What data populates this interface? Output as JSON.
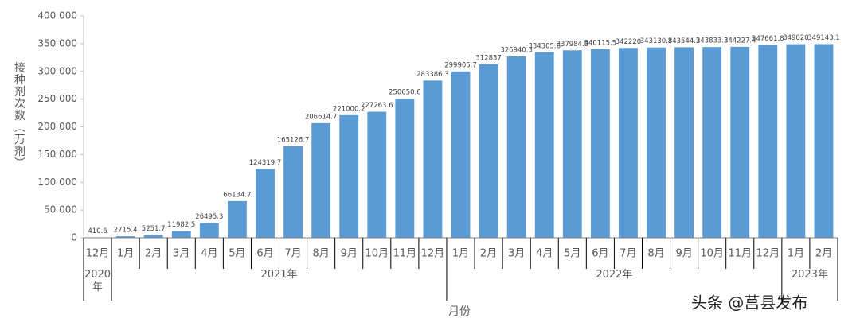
{
  "chart_data": {
    "type": "bar",
    "y_label": "接种剂次数（万剂）",
    "x_label": "月份",
    "watermark": "头条 @莒县发布",
    "groups": [
      {
        "label": "2020年",
        "categories": [
          "12月"
        ]
      },
      {
        "label": "2021年",
        "categories": [
          "1月",
          "2月",
          "3月",
          "4月",
          "5月",
          "6月",
          "7月",
          "8月",
          "9月",
          "10月",
          "11月",
          "12月"
        ]
      },
      {
        "label": "2022年",
        "categories": [
          "1月",
          "2月",
          "3月",
          "4月",
          "5月",
          "6月",
          "7月",
          "8月",
          "9月",
          "10月",
          "11月",
          "12月"
        ]
      },
      {
        "label": "2023年",
        "categories": [
          "1月",
          "2月"
        ]
      }
    ],
    "values": [
      410.6,
      2715.4,
      5251.7,
      11982.5,
      26495.3,
      66134.7,
      124319.7,
      165126.7,
      206614.7,
      221000.2,
      227263.6,
      250650.6,
      283386.3,
      299905.7,
      312837,
      326940.3,
      334305.6,
      337984.8,
      340115.5,
      342220,
      343130.8,
      343544.3,
      343833.3,
      344227.4,
      347661.8,
      349020,
      349143.1
    ],
    "color": "#5b9bd5",
    "ylim": [
      0,
      400000
    ],
    "yticks": [
      0,
      {
        "value": 50000,
        "label": "50 000"
      },
      {
        "value": 100000,
        "label": "100 000"
      },
      {
        "value": 150000,
        "label": "150 000"
      },
      {
        "value": 200000,
        "label": "200 000"
      },
      {
        "value": 250000,
        "label": "250 000"
      },
      {
        "value": 300000,
        "label": "300 000"
      },
      {
        "value": 350000,
        "label": "350 000"
      },
      {
        "value": 400000,
        "label": "400 000"
      }
    ]
  }
}
